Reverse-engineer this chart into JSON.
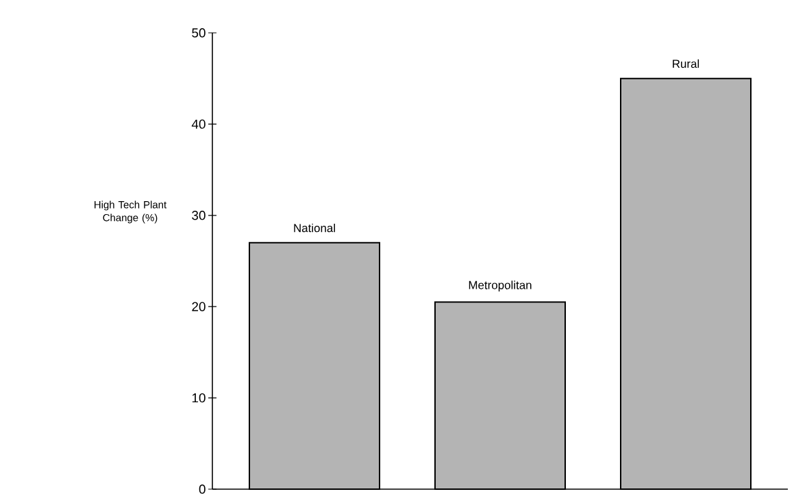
{
  "chart_data": {
    "type": "bar",
    "ylabel": "High Tech Plant Change (%)",
    "categories": [
      "National",
      "Metropolitan",
      "Rural"
    ],
    "values": [
      27,
      20.5,
      45
    ],
    "color": "#b4b4b4",
    "ylim": [
      0,
      50
    ],
    "yticks": [
      0,
      10,
      20,
      30,
      40,
      50
    ],
    "grid": false
  }
}
